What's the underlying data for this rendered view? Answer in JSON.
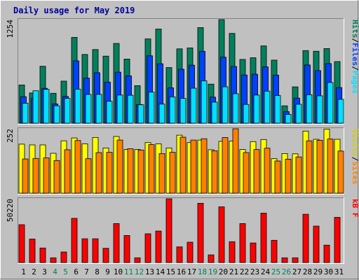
{
  "colors": {
    "background": "#c0c0c0",
    "title": "#0000a0",
    "hits": "#00805c",
    "files": "#0040ff",
    "pages": "#00e0ff",
    "visits": "#ffff00",
    "sites": "#ff8000",
    "kbytes": "#ff0000",
    "weekend": "#00805c",
    "weekday": "#000000"
  },
  "chart_data": {
    "type": "bar",
    "title": "Daily usage for May 2019",
    "categories": [
      "1",
      "2",
      "3",
      "4",
      "5",
      "6",
      "7",
      "8",
      "9",
      "10",
      "11",
      "12",
      "13",
      "14",
      "15",
      "16",
      "17",
      "18",
      "19",
      "20",
      "21",
      "22",
      "23",
      "24",
      "25",
      "26",
      "27",
      "28",
      "29",
      "30",
      "31"
    ],
    "weekend_days": [
      4,
      5,
      11,
      12,
      18,
      19,
      25,
      26
    ],
    "panels": [
      {
        "id": "hits",
        "ymax_label": "1254",
        "ymax": 1254,
        "right_label": {
          "pages": "Pages",
          "sep1": "/",
          "files": "Files",
          "sep2": "/",
          "hits": "Hits"
        },
        "series": [
          {
            "name": "Hits",
            "color_key": "hits",
            "values": [
              463,
              366,
              689,
              362,
              509,
              1039,
              832,
              891,
              812,
              965,
              776,
              454,
              1020,
              1140,
              674,
              900,
              911,
              1157,
              473,
              1254,
              1087,
              772,
              792,
              935,
              763,
              210,
              440,
              879,
              871,
              903,
              746
            ]
          },
          {
            "name": "Files",
            "color_key": "files",
            "values": [
              321,
              305,
              422,
              234,
              324,
              755,
              546,
              611,
              497,
              618,
              573,
              226,
              816,
              719,
              428,
              653,
              702,
              870,
              315,
              799,
              686,
              584,
              593,
              681,
              582,
              140,
              303,
              705,
              637,
              722,
              431
            ]
          },
          {
            "name": "Pages",
            "color_key": "pages",
            "values": [
              242,
              392,
              409,
              211,
              300,
              413,
              348,
              349,
              266,
              341,
              338,
              223,
              376,
              231,
              319,
              301,
              424,
              513,
              255,
              441,
              357,
              227,
              341,
              388,
              335,
              106,
              230,
              345,
              331,
              492,
              289
            ]
          }
        ]
      },
      {
        "id": "visits",
        "ymax_label": "252",
        "ymax": 252,
        "right_label": {
          "sites": "Sites",
          "sep": "/",
          "visits": "Visits"
        },
        "series": [
          {
            "name": "Visits",
            "color_key": "visits",
            "values": [
              192,
              189,
              189,
              156,
              205,
              216,
              193,
              218,
              177,
              222,
              171,
              171,
              198,
              193,
              177,
              227,
              198,
              208,
              170,
              203,
              204,
              171,
              202,
              210,
              135,
              155,
              154,
              243,
              211,
              251,
              211
            ]
          },
          {
            "name": "Sites",
            "color_key": "sites",
            "values": [
              134,
              136,
              138,
              128,
              170,
              206,
              135,
              159,
              160,
              208,
              174,
              169,
              190,
              155,
              160,
              219,
              208,
              213,
              166,
              218,
              252,
              159,
              171,
              176,
              126,
              133,
              142,
              205,
              207,
              212,
              165
            ]
          }
        ]
      },
      {
        "id": "kbytes",
        "ymax_label": "50220",
        "ymax": 50220,
        "right_label": {
          "kbytes": "kB F"
        },
        "series": [
          {
            "name": "kB F",
            "color_key": "kbytes",
            "values": [
              29800,
              18500,
              11400,
              3700,
              8300,
              34800,
              18700,
              18700,
              11200,
              30700,
              21300,
              3700,
              22600,
              24800,
              50220,
              12300,
              16000,
              46700,
              6000,
              43900,
              16400,
              30700,
              15400,
              38900,
              17500,
              3700,
              3700,
              38000,
              28700,
              13700,
              35600
            ]
          }
        ]
      }
    ]
  }
}
